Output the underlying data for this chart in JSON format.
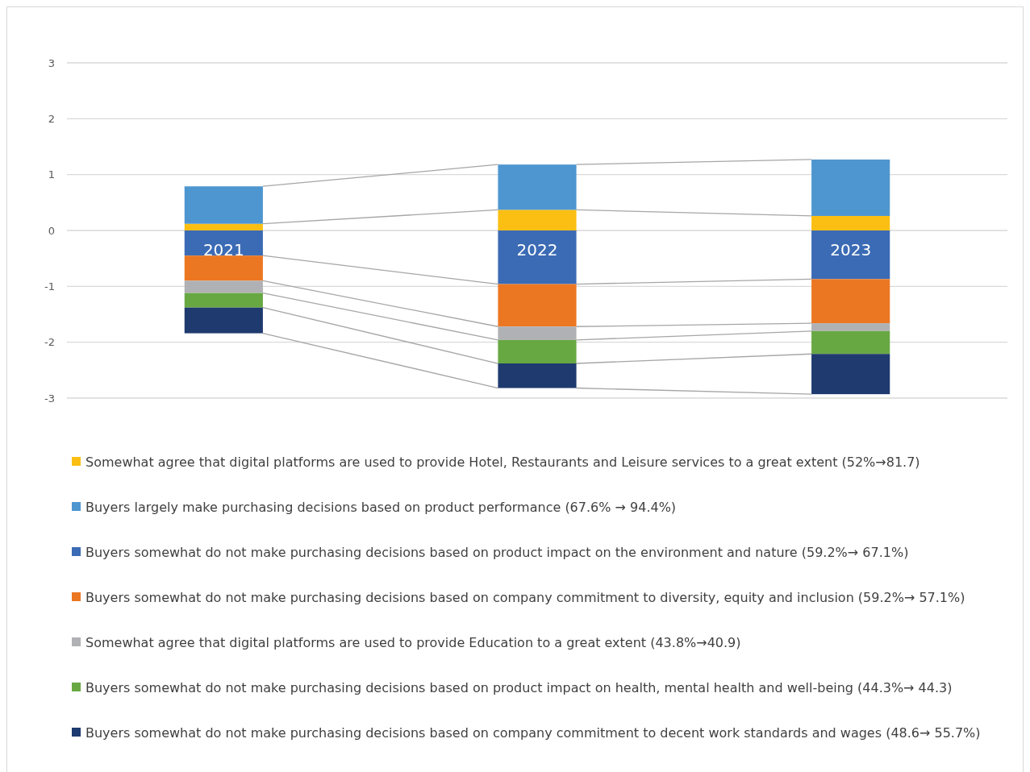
{
  "chart_data": {
    "type": "bar",
    "stacked": true,
    "categories": [
      "2021",
      "2022",
      "2023"
    ],
    "ylim": [
      -3,
      3
    ],
    "yticks": [
      -3,
      -2,
      -1,
      0,
      1,
      2,
      3
    ],
    "grid": "y",
    "legend": "bottom",
    "series": [
      {
        "name": "Somewhat agree that digital platforms are used to provide Hotel, Restaurants and Leisure services to a great extent (52%→81.7)",
        "color": "#fbbf14",
        "values": [
          0.12,
          0.37,
          0.26
        ]
      },
      {
        "name": "Buyers largely make purchasing decisions based on product performance (67.6% → 94.4%)",
        "color": "#4e96d0",
        "values": [
          0.67,
          0.81,
          1.01
        ]
      },
      {
        "name": "Buyers somewhat do not make purchasing decisions based on product impact on the environment and nature (59.2%→ 67.1%)",
        "color": "#3b6bb5",
        "values": [
          -0.45,
          -0.96,
          -0.87
        ]
      },
      {
        "name": "Buyers somewhat do not make purchasing decisions based on company commitment to diversity, equity and inclusion (59.2%→ 57.1%)",
        "color": "#ec7723",
        "values": [
          -0.45,
          -0.76,
          -0.79
        ]
      },
      {
        "name": "Somewhat agree that digital platforms are used to provide Education to a great extent (43.8%→40.9)",
        "color": "#b0b1b4",
        "values": [
          -0.22,
          -0.24,
          -0.14
        ]
      },
      {
        "name": "Buyers somewhat do not make purchasing decisions based on product impact on health, mental health and well-being (44.3%→ 44.3)",
        "color": "#67a843",
        "values": [
          -0.26,
          -0.42,
          -0.41
        ]
      },
      {
        "name": "Buyers somewhat do not make purchasing decisions based on company commitment to decent work standards and wages (48.6→ 55.7%)",
        "color": "#1e3a6e",
        "values": [
          -0.46,
          -0.44,
          -0.72
        ]
      }
    ]
  }
}
